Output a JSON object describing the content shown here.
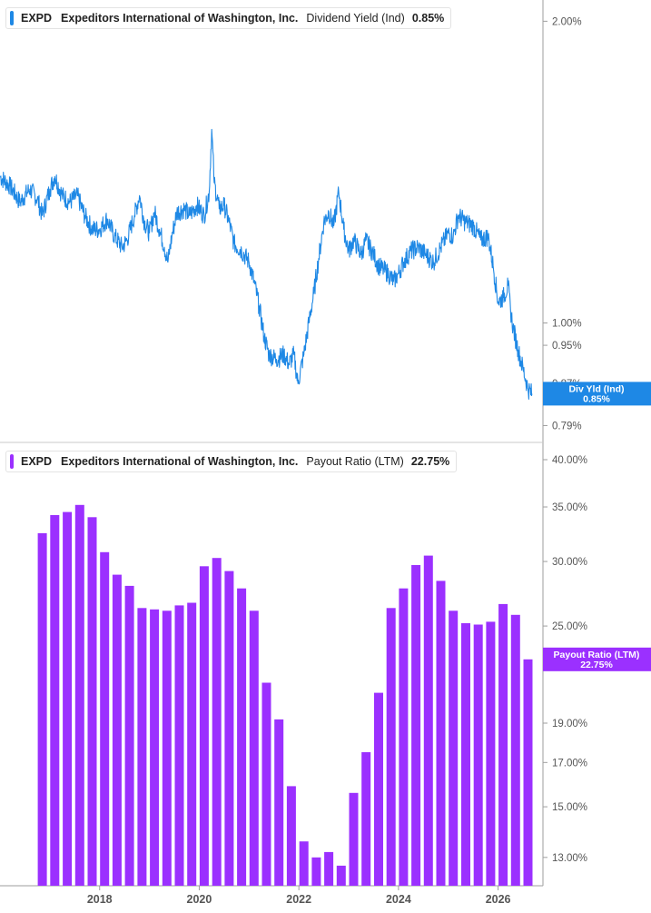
{
  "colors": {
    "yield_line": "#1e88e5",
    "payout_bars": "#9b30ff",
    "axis": "#9e9e9e",
    "tick_text": "#555555",
    "yield_tag_text": "#ffffff",
    "payout_tag_text": "#ffffff"
  },
  "panels": {
    "yield_legend": {
      "ticker": "EXPD",
      "company": "Expeditors International of Washington, Inc.",
      "metric": "Dividend Yield (Ind)",
      "value": "0.85%",
      "color": "#1e88e5"
    },
    "payout_legend": {
      "ticker": "EXPD",
      "company": "Expeditors International of Washington, Inc.",
      "metric": "Payout Ratio (LTM)",
      "value": "22.75%",
      "color": "#9b30ff"
    }
  },
  "chart_data": [
    {
      "type": "line",
      "title": "",
      "series": [
        {
          "name": "Dividend Yield (Ind)",
          "points": [
            [
              2016.0,
              1.4
            ],
            [
              2016.2,
              1.37
            ],
            [
              2016.4,
              1.32
            ],
            [
              2016.6,
              1.36
            ],
            [
              2016.75,
              1.33
            ],
            [
              2016.85,
              1.28
            ],
            [
              2017.0,
              1.36
            ],
            [
              2017.1,
              1.4
            ],
            [
              2017.25,
              1.34
            ],
            [
              2017.4,
              1.32
            ],
            [
              2017.55,
              1.34
            ],
            [
              2017.7,
              1.28
            ],
            [
              2017.85,
              1.24
            ],
            [
              2018.0,
              1.24
            ],
            [
              2018.15,
              1.27
            ],
            [
              2018.3,
              1.22
            ],
            [
              2018.45,
              1.19
            ],
            [
              2018.55,
              1.21
            ],
            [
              2018.7,
              1.28
            ],
            [
              2018.8,
              1.34
            ],
            [
              2018.9,
              1.26
            ],
            [
              2019.0,
              1.23
            ],
            [
              2019.1,
              1.29
            ],
            [
              2019.2,
              1.24
            ],
            [
              2019.3,
              1.19
            ],
            [
              2019.37,
              1.15
            ],
            [
              2019.45,
              1.22
            ],
            [
              2019.55,
              1.29
            ],
            [
              2019.7,
              1.3
            ],
            [
              2019.8,
              1.28
            ],
            [
              2019.95,
              1.31
            ],
            [
              2020.1,
              1.28
            ],
            [
              2020.2,
              1.35
            ],
            [
              2020.25,
              1.56
            ],
            [
              2020.3,
              1.38
            ],
            [
              2020.4,
              1.3
            ],
            [
              2020.5,
              1.31
            ],
            [
              2020.6,
              1.26
            ],
            [
              2020.7,
              1.2
            ],
            [
              2020.85,
              1.18
            ],
            [
              2021.0,
              1.15
            ],
            [
              2021.1,
              1.1
            ],
            [
              2021.2,
              1.04
            ],
            [
              2021.3,
              0.97
            ],
            [
              2021.4,
              0.93
            ],
            [
              2021.55,
              0.92
            ],
            [
              2021.7,
              0.93
            ],
            [
              2021.8,
              0.91
            ],
            [
              2021.9,
              0.93
            ],
            [
              2021.98,
              0.87
            ],
            [
              2022.1,
              0.93
            ],
            [
              2022.2,
              1.0
            ],
            [
              2022.3,
              1.07
            ],
            [
              2022.4,
              1.16
            ],
            [
              2022.5,
              1.26
            ],
            [
              2022.6,
              1.29
            ],
            [
              2022.7,
              1.25
            ],
            [
              2022.8,
              1.35
            ],
            [
              2022.9,
              1.24
            ],
            [
              2023.0,
              1.18
            ],
            [
              2023.1,
              1.21
            ],
            [
              2023.25,
              1.17
            ],
            [
              2023.35,
              1.21
            ],
            [
              2023.5,
              1.17
            ],
            [
              2023.6,
              1.14
            ],
            [
              2023.7,
              1.13
            ],
            [
              2023.8,
              1.12
            ],
            [
              2023.9,
              1.1
            ],
            [
              2024.0,
              1.12
            ],
            [
              2024.1,
              1.15
            ],
            [
              2024.25,
              1.18
            ],
            [
              2024.4,
              1.19
            ],
            [
              2024.55,
              1.17
            ],
            [
              2024.7,
              1.15
            ],
            [
              2024.85,
              1.19
            ],
            [
              2025.0,
              1.23
            ],
            [
              2025.1,
              1.22
            ],
            [
              2025.2,
              1.28
            ],
            [
              2025.35,
              1.26
            ],
            [
              2025.5,
              1.25
            ],
            [
              2025.65,
              1.21
            ],
            [
              2025.8,
              1.22
            ],
            [
              2025.9,
              1.14
            ],
            [
              2026.0,
              1.05
            ],
            [
              2026.1,
              1.06
            ],
            [
              2026.2,
              1.09
            ],
            [
              2026.25,
              1.03
            ],
            [
              2026.3,
              0.99
            ],
            [
              2026.4,
              0.94
            ],
            [
              2026.5,
              0.9
            ],
            [
              2026.6,
              0.86
            ],
            [
              2026.68,
              0.85
            ]
          ]
        }
      ],
      "y_ticks": [
        "2.00%",
        "1.00%",
        "0.95%",
        "0.87%",
        "0.79%"
      ],
      "ylim": [
        0.76,
        2.1
      ],
      "scale": "log",
      "last_value_label": "Div Yld (Ind)",
      "last_value": "0.85%"
    },
    {
      "type": "bar",
      "title": "",
      "series": [
        {
          "name": "Payout Ratio (LTM)",
          "points": [
            [
              2016.85,
              32.5
            ],
            [
              2017.1,
              34.2
            ],
            [
              2017.35,
              34.5
            ],
            [
              2017.6,
              35.2
            ],
            [
              2017.85,
              34.0
            ],
            [
              2018.1,
              30.8
            ],
            [
              2018.35,
              28.9
            ],
            [
              2018.6,
              28.0
            ],
            [
              2018.85,
              26.3
            ],
            [
              2019.1,
              26.2
            ],
            [
              2019.35,
              26.1
            ],
            [
              2019.6,
              26.5
            ],
            [
              2019.85,
              26.7
            ],
            [
              2020.1,
              29.6
            ],
            [
              2020.35,
              30.3
            ],
            [
              2020.6,
              29.2
            ],
            [
              2020.85,
              27.8
            ],
            [
              2021.1,
              26.1
            ],
            [
              2021.35,
              21.3
            ],
            [
              2021.6,
              19.2
            ],
            [
              2021.85,
              15.9
            ],
            [
              2022.1,
              13.6
            ],
            [
              2022.35,
              13.0
            ],
            [
              2022.6,
              13.2
            ],
            [
              2022.85,
              12.7
            ],
            [
              2023.1,
              15.6
            ],
            [
              2023.35,
              17.5
            ],
            [
              2023.6,
              20.7
            ],
            [
              2023.85,
              26.3
            ],
            [
              2024.1,
              27.8
            ],
            [
              2024.35,
              29.7
            ],
            [
              2024.6,
              30.5
            ],
            [
              2024.85,
              28.4
            ],
            [
              2025.1,
              26.1
            ],
            [
              2025.35,
              25.2
            ],
            [
              2025.6,
              25.1
            ],
            [
              2025.85,
              25.3
            ],
            [
              2026.1,
              26.6
            ],
            [
              2026.35,
              25.8
            ],
            [
              2026.6,
              22.75
            ]
          ]
        }
      ],
      "y_ticks": [
        "40.00%",
        "35.00%",
        "30.00%",
        "25.00%",
        "19.00%",
        "17.00%",
        "15.00%",
        "13.00%"
      ],
      "ylim": [
        12.0,
        42.0
      ],
      "scale": "log",
      "x_ticks": [
        "2018",
        "2020",
        "2022",
        "2024",
        "2026"
      ],
      "last_value_label": "Payout Ratio (LTM)",
      "last_value": "22.75%"
    }
  ]
}
